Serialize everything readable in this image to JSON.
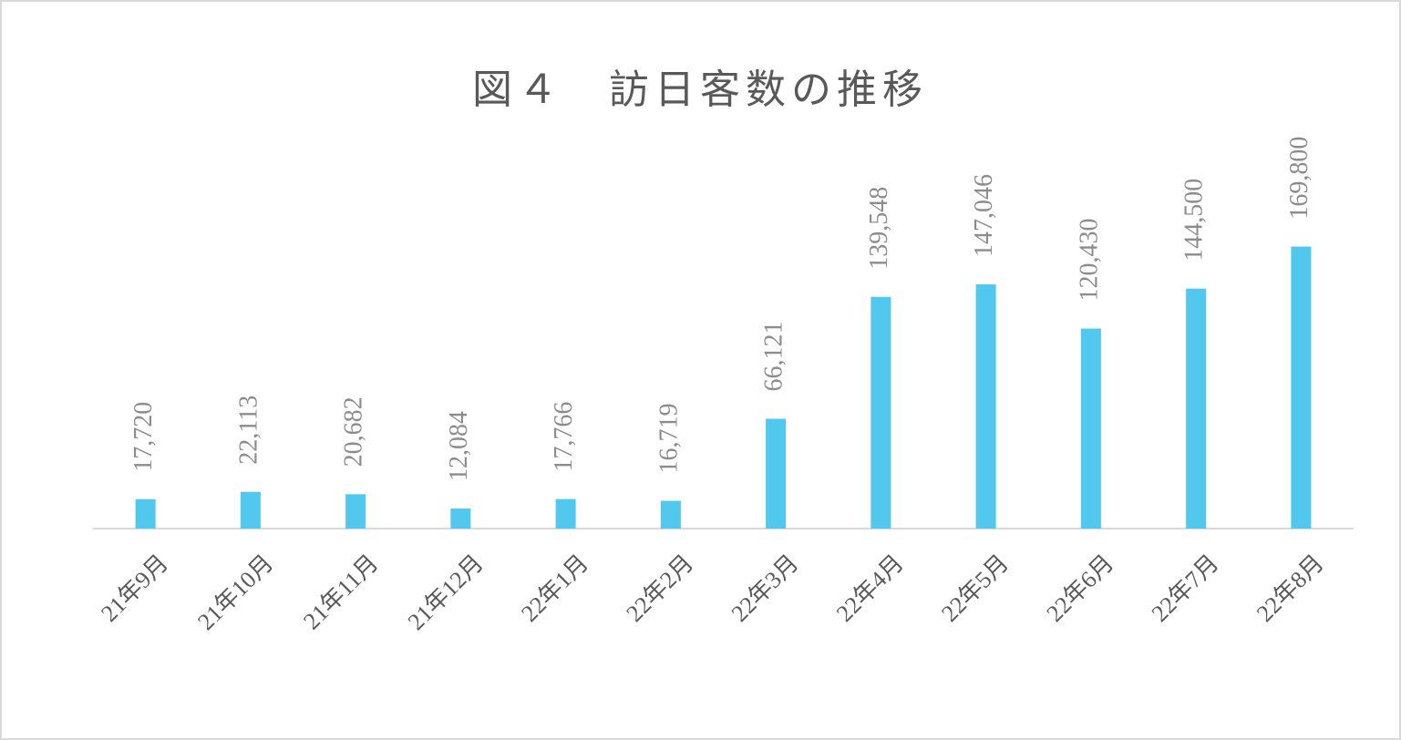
{
  "chart_data": {
    "type": "bar",
    "title": "図４　訪日客数の推移",
    "categories": [
      "21年9月",
      "21年10月",
      "21年11月",
      "21年12月",
      "22年1月",
      "22年2月",
      "22年3月",
      "22年4月",
      "22年5月",
      "22年6月",
      "22年7月",
      "22年8月"
    ],
    "values": [
      17720,
      22113,
      20682,
      12084,
      17766,
      16719,
      66121,
      139548,
      147046,
      120430,
      144500,
      169800
    ],
    "value_labels": [
      "17,720",
      "22,113",
      "20,682",
      "12,084",
      "17,766",
      "16,719",
      "66,121",
      "139,548",
      "147,046",
      "120,430",
      "144,500",
      "169,800"
    ],
    "color": "#53c8ee",
    "ylim": [
      0,
      180000
    ]
  }
}
